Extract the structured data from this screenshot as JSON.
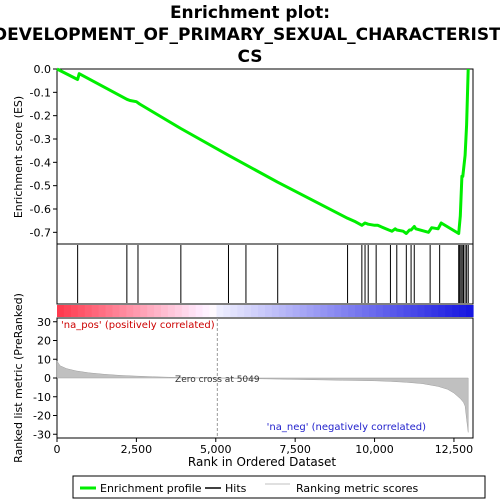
{
  "chart_data": {
    "type": "line",
    "title_lines": [
      "Enrichment plot:",
      "DEVELOPMENT_OF_PRIMARY_SEXUAL_CHARACTERISTI",
      "CS"
    ],
    "top_panel": {
      "ylabel": "Enrichment score (ES)",
      "ylim": [
        -0.75,
        0.0
      ],
      "yticks": [
        "0.0",
        "-0.1",
        "-0.2",
        "-0.3",
        "-0.4",
        "-0.5",
        "-0.6",
        "-0.7"
      ],
      "ytick_values": [
        0.0,
        -0.1,
        -0.2,
        -0.3,
        -0.4,
        -0.5,
        -0.6,
        -0.7
      ],
      "series_name": "Enrichment profile",
      "color": "#00ee00",
      "x": [
        0,
        650,
        700,
        2200,
        2300,
        2500,
        2600,
        3900,
        5400,
        6950,
        9150,
        9400,
        9600,
        9700,
        9800,
        10000,
        10100,
        10450,
        10550,
        10650,
        10700,
        10900,
        11000,
        11100,
        11150,
        11250,
        11300,
        11700,
        11800,
        12000,
        12100,
        12650,
        12700,
        12750,
        12780,
        12850,
        12900,
        12950
      ],
      "y": [
        0.0,
        -0.045,
        -0.02,
        -0.13,
        -0.135,
        -0.14,
        -0.15,
        -0.255,
        -0.37,
        -0.485,
        -0.64,
        -0.655,
        -0.67,
        -0.66,
        -0.665,
        -0.67,
        -0.67,
        -0.69,
        -0.695,
        -0.685,
        -0.69,
        -0.695,
        -0.705,
        -0.69,
        -0.69,
        -0.675,
        -0.685,
        -0.7,
        -0.68,
        -0.685,
        -0.66,
        -0.705,
        -0.63,
        -0.46,
        -0.46,
        -0.37,
        -0.24,
        0.0
      ]
    },
    "hits": [
      650,
      2200,
      2550,
      3900,
      5400,
      5950,
      6950,
      9150,
      9600,
      9700,
      9800,
      10050,
      10500,
      10700,
      11000,
      11150,
      11250,
      11750,
      12050,
      12650,
      12680,
      12720,
      12760,
      12800,
      12850,
      12900,
      12950
    ],
    "bottom_panel": {
      "ylabel": "Ranked list metric (PreRanked)",
      "xlabel": "Rank in Ordered Dataset",
      "ylim": [
        -32,
        32
      ],
      "yticks": [
        "30",
        "20",
        "10",
        "0",
        "-10",
        "-20",
        "-30"
      ],
      "ytick_values": [
        30,
        20,
        10,
        0,
        -10,
        -20,
        -30
      ],
      "xlim": [
        0,
        13100
      ],
      "xticks": [
        "0",
        "2,500",
        "5,000",
        "7,500",
        "10,000",
        "12,500"
      ],
      "xtick_values": [
        0,
        2500,
        5000,
        7500,
        10000,
        12500
      ],
      "metric_x": [
        0,
        100,
        300,
        600,
        1000,
        1500,
        2000,
        2500,
        3000,
        3500,
        4000,
        4500,
        5049,
        6000,
        7000,
        8000,
        9000,
        10000,
        10500,
        11000,
        11500,
        12000,
        12300,
        12500,
        12700,
        12800,
        12850,
        12900,
        12950
      ],
      "metric_y": [
        9,
        6.5,
        5,
        3.8,
        2.8,
        2,
        1.4,
        1,
        0.7,
        0.45,
        0.25,
        0.1,
        0,
        -0.3,
        -0.6,
        -0.9,
        -1.2,
        -1.5,
        -1.8,
        -2.3,
        -3,
        -4.5,
        -6,
        -8,
        -11,
        -13,
        -15,
        -22,
        -29
      ],
      "zero_cross_label": "Zero cross at 5049",
      "zero_cross": 5049,
      "pos_label": "'na_pos' (positively correlated)",
      "neg_label": "'na_neg' (negatively correlated)",
      "fill_color": "#c0c0c0"
    },
    "legend": {
      "placement": "bottom",
      "items": [
        {
          "label": "Enrichment profile",
          "color": "#00ee00"
        },
        {
          "label": "Hits",
          "color": "#000000"
        },
        {
          "label": "Ranking metric scores",
          "color": "#c0c0c0"
        }
      ]
    },
    "grid": false
  }
}
